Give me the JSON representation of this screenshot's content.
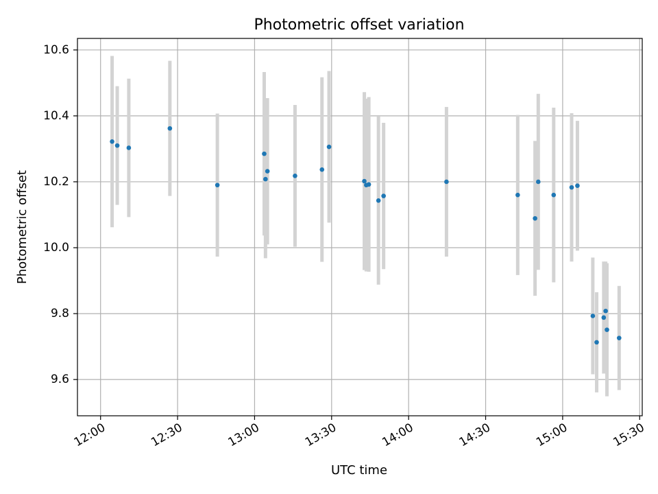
{
  "chart_data": {
    "type": "scatter",
    "title": "Photometric offset variation",
    "xlabel": "UTC time",
    "ylabel": "Photometric offset",
    "xlim": [
      "11:51",
      "15:31"
    ],
    "ylim": [
      9.49,
      10.635
    ],
    "grid": true,
    "x_ticks": [
      "12:00",
      "12:30",
      "13:00",
      "13:30",
      "14:00",
      "14:30",
      "15:00",
      "15:30"
    ],
    "y_ticks": [
      9.6,
      9.8,
      10.0,
      10.2,
      10.4,
      10.6
    ],
    "y_tick_labels": [
      "9.6",
      "9.8",
      "10.0",
      "10.2",
      "10.4",
      "10.6"
    ],
    "point_color": "#1f77b4",
    "errorbar_color": "#d3d3d3",
    "points": [
      {
        "x": "12:04:30",
        "y": 10.322,
        "err": 0.26
      },
      {
        "x": "12:06:30",
        "y": 10.31,
        "err": 0.18
      },
      {
        "x": "12:11:00",
        "y": 10.303,
        "err": 0.21
      },
      {
        "x": "12:27:00",
        "y": 10.362,
        "err": 0.205
      },
      {
        "x": "12:45:30",
        "y": 10.19,
        "err": 0.217
      },
      {
        "x": "13:03:45",
        "y": 10.285,
        "err": 0.248
      },
      {
        "x": "13:04:15",
        "y": 10.208,
        "err": 0.24
      },
      {
        "x": "13:05:00",
        "y": 10.232,
        "err": 0.222
      },
      {
        "x": "13:15:45",
        "y": 10.218,
        "err": 0.215
      },
      {
        "x": "13:26:15",
        "y": 10.237,
        "err": 0.28
      },
      {
        "x": "13:29:00",
        "y": 10.306,
        "err": 0.23
      },
      {
        "x": "13:42:45",
        "y": 10.202,
        "err": 0.27
      },
      {
        "x": "13:43:30",
        "y": 10.19,
        "err": 0.262
      },
      {
        "x": "13:44:30",
        "y": 10.192,
        "err": 0.265
      },
      {
        "x": "13:48:15",
        "y": 10.143,
        "err": 0.255
      },
      {
        "x": "13:50:15",
        "y": 10.157,
        "err": 0.222
      },
      {
        "x": "14:14:45",
        "y": 10.2,
        "err": 0.227
      },
      {
        "x": "14:42:30",
        "y": 10.16,
        "err": 0.243
      },
      {
        "x": "14:49:15",
        "y": 10.089,
        "err": 0.235
      },
      {
        "x": "14:50:30",
        "y": 10.2,
        "err": 0.267
      },
      {
        "x": "14:56:30",
        "y": 10.16,
        "err": 0.265
      },
      {
        "x": "15:03:30",
        "y": 10.183,
        "err": 0.225
      },
      {
        "x": "15:05:45",
        "y": 10.188,
        "err": 0.197
      },
      {
        "x": "15:11:45",
        "y": 9.793,
        "err": 0.177
      },
      {
        "x": "15:13:15",
        "y": 9.713,
        "err": 0.152
      },
      {
        "x": "15:16:00",
        "y": 9.788,
        "err": 0.17
      },
      {
        "x": "15:16:45",
        "y": 9.808,
        "err": 0.15
      },
      {
        "x": "15:17:15",
        "y": 9.751,
        "err": 0.202
      },
      {
        "x": "15:22:00",
        "y": 9.726,
        "err": 0.158
      }
    ]
  }
}
